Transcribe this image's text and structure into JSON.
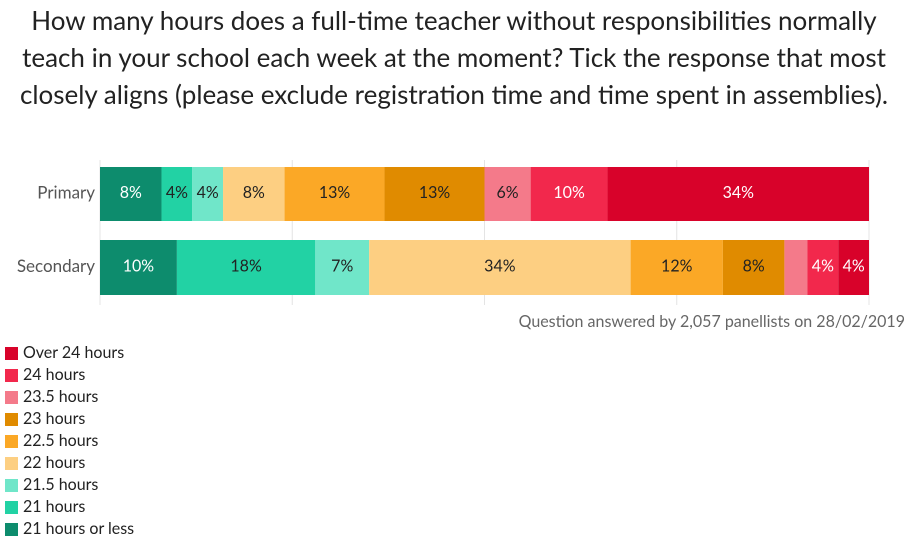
{
  "chart_data": {
    "type": "stacked-bar-horizontal",
    "title": "How many hours does a full-time teacher without responsibilities normally teach in your school each week at the moment? Tick the response that most closely aligns (please exclude registration time and time spent in assemblies).",
    "note": "Question answered by 2,057 panellists on 28/02/2019",
    "categories": [
      "Primary",
      "Secondary"
    ],
    "xlim": [
      0,
      100
    ],
    "xticks": [
      0,
      25,
      50,
      75,
      100
    ],
    "grid": true,
    "legend": "bottom-left",
    "series": [
      {
        "name": "21 hours or less",
        "color": "#0d8c6d",
        "values": [
          8,
          10
        ],
        "value_labels": [
          "8%",
          "10%"
        ]
      },
      {
        "name": "21 hours",
        "color": "#22d2a4",
        "values": [
          4,
          18
        ],
        "value_labels": [
          "4%",
          "18%"
        ]
      },
      {
        "name": "21.5 hours",
        "color": "#70e6c9",
        "values": [
          4,
          7
        ],
        "value_labels": [
          "4%",
          "7%"
        ]
      },
      {
        "name": "22 hours",
        "color": "#fdcf82",
        "values": [
          8,
          34
        ],
        "value_labels": [
          "8%",
          "34%"
        ]
      },
      {
        "name": "22.5 hours",
        "color": "#fba826",
        "values": [
          13,
          12
        ],
        "value_labels": [
          "13%",
          "12%"
        ]
      },
      {
        "name": "23 hours",
        "color": "#e08b00",
        "values": [
          13,
          8
        ],
        "value_labels": [
          "13%",
          "8%"
        ]
      },
      {
        "name": "23.5 hours",
        "color": "#f47a8a",
        "values": [
          6,
          3
        ],
        "value_labels": [
          "6%",
          null
        ]
      },
      {
        "name": "24 hours",
        "color": "#f2284c",
        "values": [
          10,
          4
        ],
        "value_labels": [
          "10%",
          "4%"
        ]
      },
      {
        "name": "Over 24 hours",
        "color": "#d8022a",
        "values": [
          34,
          4
        ],
        "value_labels": [
          "34%",
          "4%"
        ]
      }
    ]
  }
}
